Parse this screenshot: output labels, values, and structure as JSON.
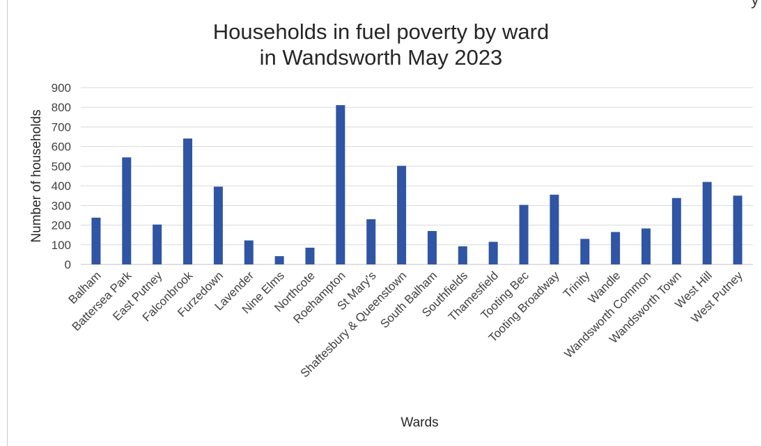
{
  "corner_fragment": "y",
  "chart_data": {
    "type": "bar",
    "title_line1": "Households in fuel poverty by ward",
    "title_line2": "in Wandsworth May 2023",
    "xlabel": "Wards",
    "ylabel": "Number of households",
    "ylim": [
      0,
      900
    ],
    "yticks": [
      0,
      100,
      200,
      300,
      400,
      500,
      600,
      700,
      800,
      900
    ],
    "grid": true,
    "bar_color": "#2f55a4",
    "categories": [
      "Balham",
      "Battersea Park",
      "East Putney",
      "Falconbrook",
      "Furzedown",
      "Lavender",
      "Nine Elms",
      "Northcote",
      "Roehampton",
      "St Mary's",
      "Shaftesbury & Queenstown",
      "South Balham",
      "Southfields",
      "Thamesfield",
      "Tooting Bec",
      "Tooting Broadway",
      "Trinity",
      "Wandle",
      "Wandsworth Common",
      "Wandsworth Town",
      "West Hill",
      "West Putney"
    ],
    "values": [
      238,
      545,
      203,
      641,
      396,
      122,
      42,
      85,
      811,
      230,
      502,
      170,
      92,
      115,
      303,
      355,
      130,
      165,
      183,
      338,
      420,
      350
    ]
  }
}
